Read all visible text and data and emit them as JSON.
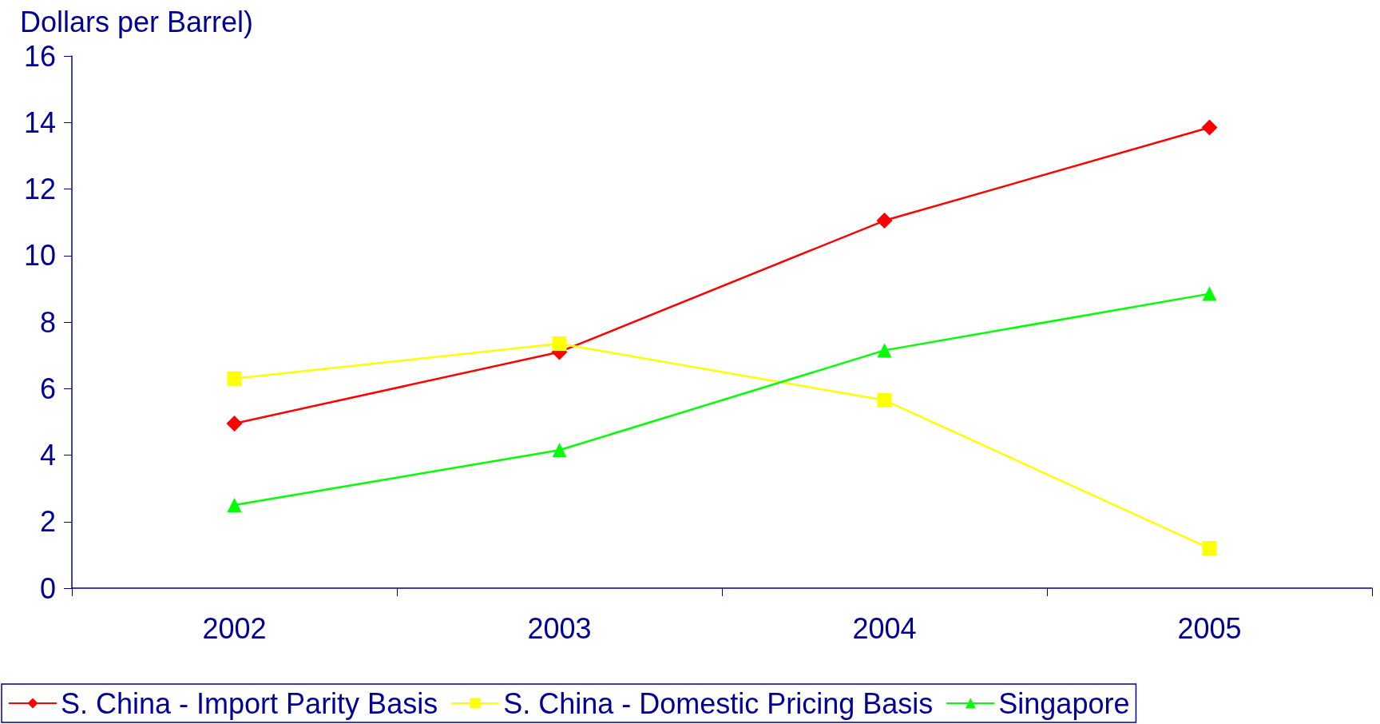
{
  "chart_data": {
    "type": "line",
    "title": "Dollars per Barrel)",
    "categories": [
      "2002",
      "2003",
      "2004",
      "2005"
    ],
    "series": [
      {
        "name": "S. China - Import Parity Basis",
        "color": "#ff0000",
        "marker": "diamond",
        "values": [
          4.95,
          7.1,
          11.05,
          13.85
        ]
      },
      {
        "name": "S. China - Domestic Pricing Basis",
        "color": "#ffff00",
        "marker": "square",
        "values": [
          6.3,
          7.35,
          5.65,
          1.2
        ]
      },
      {
        "name": "Singapore",
        "color": "#00ff00",
        "marker": "triangle",
        "values": [
          2.5,
          4.15,
          7.15,
          8.85
        ]
      }
    ],
    "ylim": [
      0,
      16
    ],
    "yticks": [
      0,
      2,
      4,
      6,
      8,
      10,
      12,
      14,
      16
    ],
    "grid": false,
    "legend": "bottom"
  }
}
